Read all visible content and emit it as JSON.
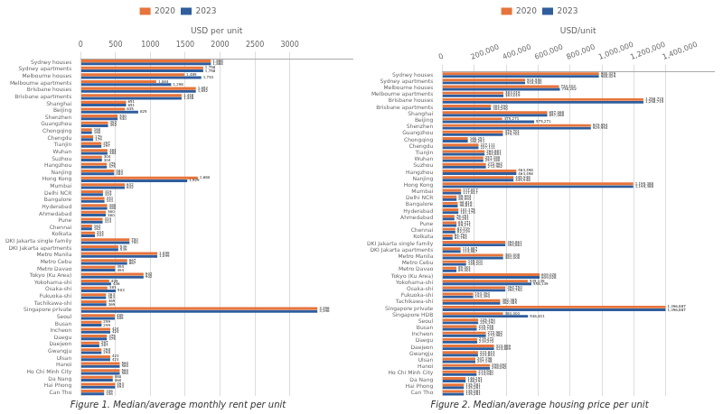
{
  "chart_data": [
    {
      "type": "bar",
      "orientation": "horizontal",
      "title": "Figure 1. Median/average monthly rent per unit",
      "xlabel": "USD per unit",
      "categories": [
        "Sydney houses",
        "Sydney apartments",
        "Melbourne houses",
        "Melbourne apartments",
        "Brisbane houses",
        "Brisbane apartments",
        "Shanghai",
        "Beijing",
        "Shenzhen",
        "Guangzhou",
        "Chongqing",
        "Chengdu",
        "Tianjin",
        "Wuhan",
        "Suzhou",
        "Hangzhou",
        "Nanjing",
        "Hong Kong",
        "Mumbai",
        "Delhi NCR",
        "Bangalore",
        "Hyderabad",
        "Ahmedabad",
        "Pune",
        "Chennai",
        "Kolkata",
        "DKI Jakarta single family",
        "DKI Jakarta apartments",
        "Metro Manila",
        "Metro Cebu",
        "Metro Davao",
        "Tokyo (Ku Area)",
        "Yokohama-shi",
        "Osaka-shi",
        "Fukuoka-shi",
        "Tachikawa-shi",
        "Singapore private",
        "Seoul",
        "Busan",
        "Incheon",
        "Daegu",
        "Daejeon",
        "Gwangju",
        "Ulsan",
        "Hanoi",
        "Ho Chi Minh City",
        "Da Nang",
        "Hai Phong",
        "Can Tho"
      ],
      "series": [
        {
          "name": "2020",
          "color": "#E8743B",
          "values": [
            1868,
            1758,
            1489,
            1084,
            1652,
            1448,
            651,
            635,
            530,
            392,
            160,
            179,
            297,
            384,
            304,
            375,
            480,
            1680,
            632,
            319,
            341,
            380,
            360,
            314,
            162,
            204,
            700,
            539,
            1099,
            667,
            494,
            902,
            409,
            383,
            363,
            369,
            3396,
            489,
            299,
            424,
            375,
            267,
            298,
            423,
            560,
            560,
            460,
            493,
            336
          ],
          "value_labels": [
            "1,868",
            "1,758",
            "1,489",
            "1,084",
            "1,652",
            "1,448",
            "651",
            "635",
            "530",
            "392",
            "160",
            "179",
            "297",
            "384",
            "304",
            "375",
            "480",
            "1,680",
            "632",
            "319",
            "341",
            "380",
            "360",
            "314",
            "162",
            "204",
            "700",
            "539",
            "1,099",
            "667",
            "494",
            "902",
            "409",
            "383",
            "363",
            "369",
            "3,396",
            "489",
            "299",
            "424",
            "375",
            "267",
            "298",
            "423",
            "560",
            "560",
            "460",
            "493",
            "336"
          ]
        },
        {
          "name": "2023",
          "color": "#2E5E9E",
          "values": [
            1868,
            1758,
            1730,
            1298,
            1652,
            1448,
            651,
            825,
            530,
            392,
            160,
            179,
            297,
            384,
            304,
            375,
            480,
            1529,
            632,
            319,
            341,
            380,
            360,
            314,
            162,
            204,
            700,
            539,
            1099,
            667,
            494,
            902,
            436,
            503,
            363,
            369,
            3396,
            489,
            299,
            424,
            375,
            267,
            298,
            423,
            560,
            560,
            460,
            493,
            336
          ],
          "value_labels": [
            "1,868",
            "1,758",
            "1,730",
            "1,298",
            "1,652",
            "1,448",
            "651",
            "825",
            "530",
            "392",
            "160",
            "179",
            "297",
            "384",
            "304",
            "375",
            "480",
            "1,529",
            "632",
            "319",
            "341",
            "380",
            "360",
            "314",
            "162",
            "204",
            "700",
            "539",
            "1,099",
            "667",
            "494",
            "902",
            "436",
            "503",
            "363",
            "369",
            "3,396",
            "489",
            "299",
            "424",
            "375",
            "267",
            "298",
            "423",
            "560",
            "560",
            "460",
            "493",
            "336"
          ]
        }
      ],
      "xlim": [
        0,
        3900
      ],
      "xticks": [
        0,
        500,
        1000,
        1500,
        2000,
        2500,
        3000
      ],
      "grid": true,
      "legend": "top",
      "data_labels": true
    },
    {
      "type": "bar",
      "orientation": "horizontal",
      "title": "Figure 2. Median/average housing price per unit",
      "xlabel": "USD/unit",
      "categories": [
        "Sydney houses",
        "Sydney apartments",
        "Melbourne houses",
        "Melbourne apartments",
        "Brisbane houses",
        "Brisbane apartments",
        "Shanghai",
        "Beijing",
        "Shenzhen",
        "Guangzhou",
        "Chongqing",
        "Chengdu",
        "Tianjin",
        "Wuhan",
        "Suzhou",
        "Hangzhou",
        "Nanjing",
        "Hong Kong",
        "Mumbai",
        "Delhi NCR",
        "Bangalore",
        "Hyderabad",
        "Ahmedabad",
        "Pune",
        "Chennai",
        "Kolkata",
        "DKI Jakarta single family",
        "DKI Jakarta apartments",
        "Metro Manila",
        "Metro Cebu",
        "Metro Davao",
        "Tokyo (Ku Area)",
        "Yokohama-shi",
        "Osaka-shi",
        "Fukuoka-shi",
        "Tachikawa-shi",
        "Singapore private",
        "Singapore HDB",
        "Seoul",
        "Busan",
        "Incheon",
        "Daegu",
        "Daejeon",
        "Gwangju",
        "Ulsan",
        "Hanoi",
        "Ho Chi Minh City",
        "Da Nang",
        "Hai Phong",
        "Can Tho"
      ],
      "series": [
        {
          "name": "2020",
          "color": "#E8743B",
          "values": [
            980029,
            518540,
            730202,
            383019,
            1258715,
            304290,
            657068,
            375271,
            929954,
            379701,
            160251,
            227111,
            264881,
            257180,
            272962,
            463498,
            445948,
            1195388,
            117817,
            89993,
            96816,
            101175,
            76251,
            89271,
            82219,
            64794,
            394861,
            114887,
            381000,
            149201,
            89001,
            609028,
            535139,
            394750,
            193390,
            362385,
            1396887,
            380000,
            225190,
            215738,
            272982,
            219272,
            323869,
            223843,
            207198,
            298092,
            214940,
            146291,
            135281,
            135281
          ],
          "value_labels": [
            "980,029",
            "518,540",
            "730,202",
            "383,019",
            "1,258,715",
            "304,290",
            "657,068",
            "375,271",
            "929,954",
            "379,701",
            "160,251",
            "227,111",
            "264,881",
            "257,180",
            "272,962",
            "463,498",
            "445,948",
            "1,195,388",
            "117,817",
            "89,993",
            "96,816",
            "101,175",
            "76,251",
            "89,271",
            "82,219",
            "64,794",
            "394,861",
            "114,887",
            "381,000",
            "149,201",
            "89,001",
            "609,028",
            "535,139",
            "394,750",
            "193,390",
            "362,385",
            "1,396,887",
            "380,000",
            "225,190",
            "215,738",
            "272,982",
            "219,272",
            "323,869",
            "223,843",
            "207,198",
            "298,092",
            "214,940",
            "146,291",
            "135,281",
            "135,281"
          ]
        },
        {
          "name": "2023",
          "color": "#2E5E9E",
          "values": [
            980029,
            518540,
            736202,
            383019,
            1258715,
            304290,
            657068,
            575271,
            929954,
            379701,
            160251,
            227111,
            264881,
            257180,
            272962,
            463498,
            445948,
            1195388,
            117817,
            89993,
            96816,
            101175,
            76251,
            89271,
            82219,
            64794,
            394861,
            114887,
            381000,
            149201,
            89001,
            609028,
            558139,
            394750,
            193390,
            362385,
            1396887,
            536811,
            225190,
            215738,
            272982,
            219272,
            323869,
            223843,
            207198,
            298092,
            214940,
            146291,
            135281,
            135281
          ],
          "value_labels": [
            "980,029",
            "518,540",
            "736,202",
            "383,019",
            "1,258,715",
            "304,290",
            "657,068",
            "575,271",
            "929,954",
            "379,701",
            "160,251",
            "227,111",
            "264,881",
            "257,180",
            "272,962",
            "463,498",
            "445,948",
            "1,195,388",
            "117,817",
            "89,993",
            "96,816",
            "101,175",
            "76,251",
            "89,271",
            "82,219",
            "64,794",
            "394,861",
            "114,887",
            "381,000",
            "149,201",
            "89,001",
            "609,028",
            "558,139",
            "394,750",
            "193,390",
            "362,385",
            "1,396,887",
            "536,811",
            "225,190",
            "215,738",
            "272,982",
            "219,272",
            "323,869",
            "223,843",
            "207,198",
            "298,092",
            "214,940",
            "146,291",
            "135,281",
            "135,281"
          ]
        }
      ],
      "xlim": [
        0,
        1700000
      ],
      "xticks": [
        0,
        {
          "value": 200000,
          "label": "200,000"
        },
        {
          "value": 400000,
          "label": "400,000"
        },
        {
          "value": 600000,
          "label": "600,000"
        },
        {
          "value": 800000,
          "label": "800,000"
        },
        {
          "value": 1000000,
          "label": "1,000,000"
        },
        {
          "value": 1200000,
          "label": "1,200,000"
        },
        {
          "value": 1400000,
          "label": "1,400,000"
        }
      ],
      "grid": true,
      "legend": "top",
      "data_labels": true
    }
  ]
}
